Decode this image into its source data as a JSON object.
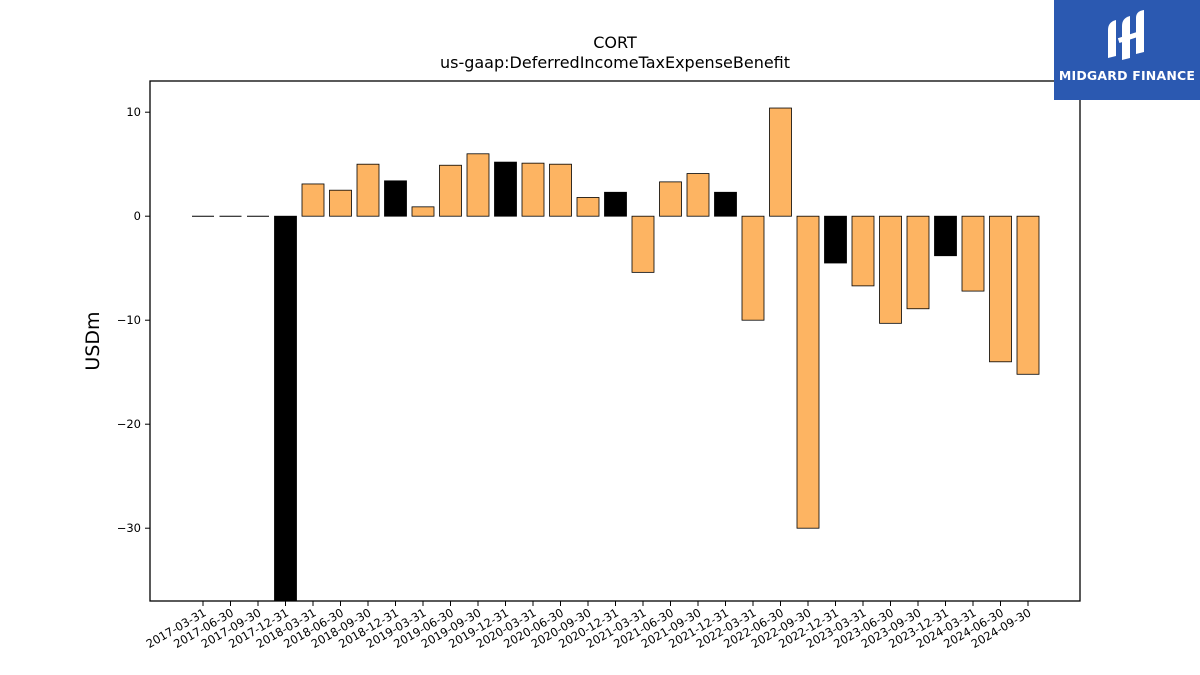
{
  "chart_data": {
    "type": "bar",
    "title": "CORT",
    "subtitle": "us-gaap:DeferredIncomeTaxExpenseBenefit",
    "xlabel": "",
    "ylabel": "USDm",
    "ylim": [
      -37,
      13
    ],
    "yticks": [
      10,
      0,
      -10,
      -20,
      -30
    ],
    "ytick_labels": [
      "10",
      "0",
      "−10",
      "−20",
      "−30"
    ],
    "grid": false,
    "colors": {
      "orange": "#fdb462",
      "black": "#000000"
    },
    "categories": [
      "2017-03-31",
      "2017-06-30",
      "2017-09-30",
      "2017-12-31",
      "2018-03-31",
      "2018-06-30",
      "2018-09-30",
      "2018-12-31",
      "2019-03-31",
      "2019-06-30",
      "2019-09-30",
      "2019-12-31",
      "2020-03-31",
      "2020-06-30",
      "2020-09-30",
      "2020-12-31",
      "2021-03-31",
      "2021-06-30",
      "2021-09-30",
      "2021-12-31",
      "2022-03-31",
      "2022-06-30",
      "2022-09-30",
      "2022-12-31",
      "2023-03-31",
      "2023-06-30",
      "2023-09-30",
      "2023-12-31",
      "2024-03-31",
      "2024-06-30",
      "2024-09-30"
    ],
    "values": [
      0,
      0,
      0,
      -37,
      3.1,
      2.5,
      5.0,
      3.4,
      0.9,
      4.9,
      6.0,
      5.2,
      5.1,
      5.0,
      1.8,
      2.3,
      -5.4,
      3.3,
      4.1,
      2.3,
      -10.0,
      10.4,
      -30.0,
      -4.5,
      -6.7,
      -10.3,
      -8.9,
      -3.8,
      -7.2,
      -14.0,
      -15.2
    ],
    "bar_colors": [
      "black",
      "black",
      "black",
      "black",
      "orange",
      "orange",
      "orange",
      "black",
      "orange",
      "orange",
      "orange",
      "black",
      "orange",
      "orange",
      "orange",
      "black",
      "orange",
      "orange",
      "orange",
      "black",
      "orange",
      "orange",
      "orange",
      "black",
      "orange",
      "orange",
      "orange",
      "black",
      "orange",
      "orange",
      "orange"
    ]
  },
  "logo": {
    "text": "MIDGARD FINANCE",
    "bg": "#2b59b1"
  }
}
